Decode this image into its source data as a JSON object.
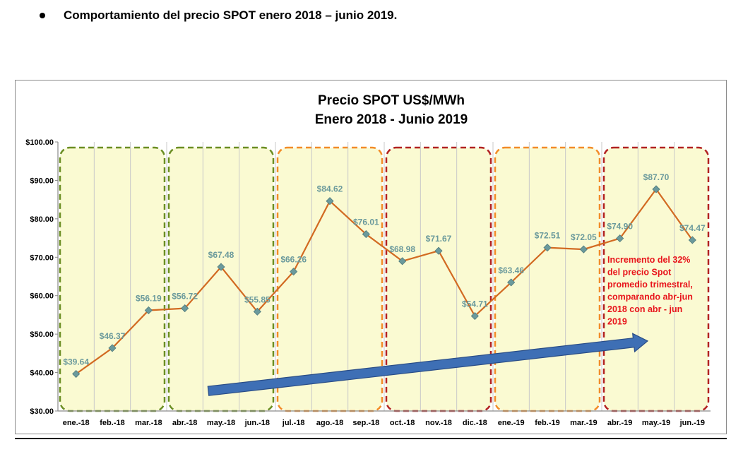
{
  "heading": "Comportamiento del precio SPOT enero 2018 – junio 2019.",
  "chart_data": {
    "type": "line",
    "title_lines": [
      "Precio SPOT US$/MWh",
      "Enero 2018 -  Junio 2019"
    ],
    "categories": [
      "ene.-18",
      "feb.-18",
      "mar.-18",
      "abr.-18",
      "may.-18",
      "jun.-18",
      "jul.-18",
      "ago.-18",
      "sep.-18",
      "oct.-18",
      "nov.-18",
      "dic.-18",
      "ene.-19",
      "feb.-19",
      "mar.-19",
      "abr.-19",
      "may.-19",
      "jun.-19"
    ],
    "values": [
      39.64,
      46.37,
      56.19,
      56.72,
      67.48,
      55.85,
      66.26,
      84.62,
      76.01,
      68.98,
      71.67,
      54.71,
      63.46,
      72.51,
      72.05,
      74.9,
      87.7,
      74.47
    ],
    "value_labels": [
      "$39.64",
      "$46.37",
      "$56.19",
      "$56.72",
      "$67.48",
      "$55.85",
      "$66.26",
      "$84.62",
      "$76.01",
      "$68.98",
      "$71.67",
      "$54.71",
      "$63.46",
      "$72.51",
      "$72.05",
      "$74.90",
      "$87.70",
      "$74.47"
    ],
    "ylim": [
      30,
      100
    ],
    "y_ticks": [
      "$30.00",
      "$40.00",
      "$50.00",
      "$60.00",
      "$70.00",
      "$80.00",
      "$90.00",
      "$100.00"
    ],
    "grid": "vertical",
    "line_color": "#d26a22",
    "marker_color": "#6b9a9c",
    "label_color": "#6b9a9c",
    "quarters": [
      {
        "start": 0,
        "end": 2,
        "border": "#6b8e23"
      },
      {
        "start": 3,
        "end": 5,
        "border": "#6b8e23"
      },
      {
        "start": 6,
        "end": 8,
        "border": "#f28c28"
      },
      {
        "start": 9,
        "end": 11,
        "border": "#b22222"
      },
      {
        "start": 12,
        "end": 14,
        "border": "#f28c28"
      },
      {
        "start": 15,
        "end": 17,
        "border": "#b22222"
      }
    ],
    "quarter_fill": "#fafad2",
    "annotation": {
      "lines": [
        "Incremento del 32%",
        "del precio Spot",
        "promedio trimestral,",
        "comparando  abr-jun",
        "2018 con abr - jun",
        "2019"
      ],
      "color": "#e8141b"
    },
    "arrow_color": "#3e6fb5"
  }
}
